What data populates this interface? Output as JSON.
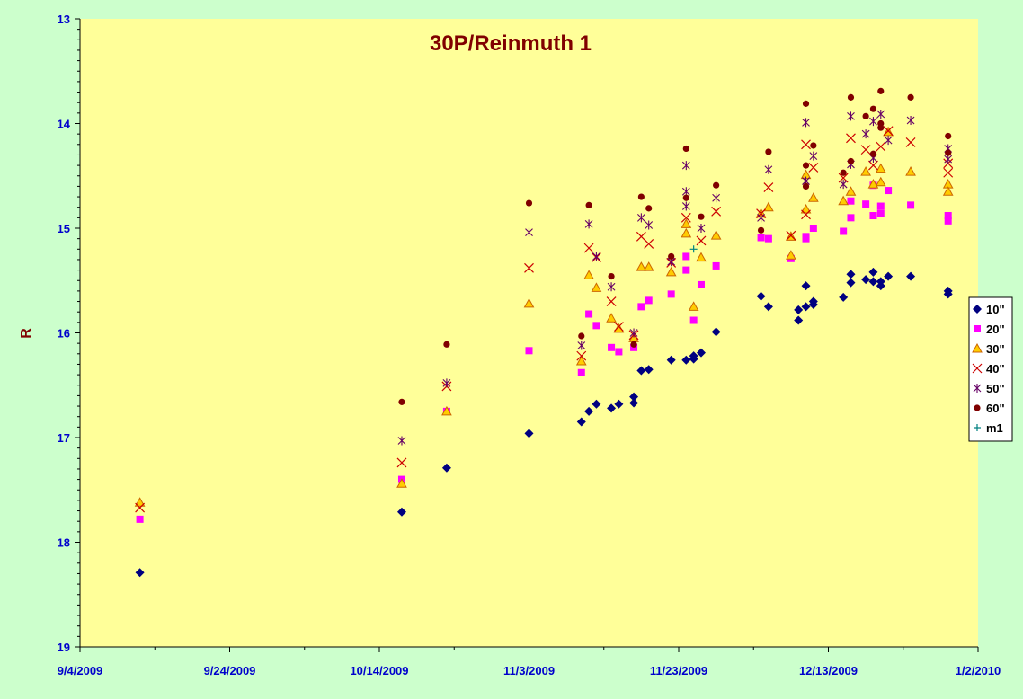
{
  "chart_data": {
    "type": "scatter",
    "title": "30P/Reinmuth 1",
    "ylabel": "R",
    "xlabel": "",
    "y_inverted": true,
    "ylim": [
      13,
      19
    ],
    "xlim": [
      "2009-09-04",
      "2010-01-02"
    ],
    "y_ticks": [
      "13",
      "14",
      "15",
      "16",
      "17",
      "18",
      "19"
    ],
    "x_ticks": [
      "9/4/2009",
      "9/24/2009",
      "10/14/2009",
      "11/3/2009",
      "11/23/2009",
      "12/13/2009",
      "1/2/2010"
    ],
    "grid": false,
    "legend_position": "right",
    "colors": {
      "plot_background": "#ffff99",
      "page_background": "#ccffcc"
    },
    "series": [
      {
        "name": "10\"",
        "marker": "diamond",
        "color": "#000080",
        "points": [
          [
            "2009-09-12",
            18.29
          ],
          [
            "2009-10-17",
            17.71
          ],
          [
            "2009-10-23",
            17.29
          ],
          [
            "2009-11-03",
            16.96
          ],
          [
            "2009-11-10",
            16.85
          ],
          [
            "2009-11-11",
            16.75
          ],
          [
            "2009-11-12",
            16.68
          ],
          [
            "2009-11-14",
            16.72
          ],
          [
            "2009-11-15",
            16.68
          ],
          [
            "2009-11-17",
            16.67
          ],
          [
            "2009-11-17",
            16.61
          ],
          [
            "2009-11-18",
            16.36
          ],
          [
            "2009-11-19",
            16.35
          ],
          [
            "2009-11-22",
            16.26
          ],
          [
            "2009-11-24",
            16.26
          ],
          [
            "2009-11-25",
            16.25
          ],
          [
            "2009-11-25",
            16.22
          ],
          [
            "2009-11-26",
            16.19
          ],
          [
            "2009-11-28",
            15.99
          ],
          [
            "2009-12-04",
            15.65
          ],
          [
            "2009-12-05",
            15.75
          ],
          [
            "2009-12-09",
            15.78
          ],
          [
            "2009-12-09",
            15.88
          ],
          [
            "2009-12-10",
            15.55
          ],
          [
            "2009-12-10",
            15.75
          ],
          [
            "2009-12-11",
            15.73
          ],
          [
            "2009-12-11",
            15.7
          ],
          [
            "2009-12-15",
            15.66
          ],
          [
            "2009-12-16",
            15.44
          ],
          [
            "2009-12-16",
            15.52
          ],
          [
            "2009-12-18",
            15.49
          ],
          [
            "2009-12-19",
            15.51
          ],
          [
            "2009-12-19",
            15.42
          ],
          [
            "2009-12-20",
            15.55
          ],
          [
            "2009-12-20",
            15.51
          ],
          [
            "2009-12-21",
            15.46
          ],
          [
            "2009-12-24",
            15.46
          ],
          [
            "2009-12-29",
            15.6
          ],
          [
            "2009-12-29",
            15.63
          ]
        ]
      },
      {
        "name": "20\"",
        "marker": "square",
        "color": "#ff00ff",
        "points": [
          [
            "2009-09-12",
            17.78
          ],
          [
            "2009-10-17",
            17.4
          ],
          [
            "2009-10-23",
            16.75
          ],
          [
            "2009-11-03",
            16.17
          ],
          [
            "2009-11-10",
            16.38
          ],
          [
            "2009-11-11",
            15.82
          ],
          [
            "2009-11-12",
            15.93
          ],
          [
            "2009-11-14",
            16.14
          ],
          [
            "2009-11-15",
            16.18
          ],
          [
            "2009-11-17",
            16.14
          ],
          [
            "2009-11-18",
            15.75
          ],
          [
            "2009-11-19",
            15.69
          ],
          [
            "2009-11-22",
            15.63
          ],
          [
            "2009-11-24",
            15.4
          ],
          [
            "2009-11-24",
            15.27
          ],
          [
            "2009-11-25",
            15.88
          ],
          [
            "2009-11-26",
            15.54
          ],
          [
            "2009-11-28",
            15.36
          ],
          [
            "2009-12-04",
            15.09
          ],
          [
            "2009-12-05",
            15.1
          ],
          [
            "2009-12-08",
            15.29
          ],
          [
            "2009-12-10",
            15.1
          ],
          [
            "2009-12-10",
            15.08
          ],
          [
            "2009-12-11",
            15.0
          ],
          [
            "2009-12-15",
            15.03
          ],
          [
            "2009-12-16",
            14.9
          ],
          [
            "2009-12-16",
            14.74
          ],
          [
            "2009-12-18",
            14.77
          ],
          [
            "2009-12-19",
            14.88
          ],
          [
            "2009-12-19",
            14.59
          ],
          [
            "2009-12-20",
            14.86
          ],
          [
            "2009-12-20",
            14.79
          ],
          [
            "2009-12-21",
            14.64
          ],
          [
            "2009-12-24",
            14.78
          ],
          [
            "2009-12-29",
            14.88
          ],
          [
            "2009-12-29",
            14.93
          ]
        ]
      },
      {
        "name": "30\"",
        "marker": "triangle",
        "color": "#ffcc00",
        "stroke": "#cc6600",
        "points": [
          [
            "2009-09-12",
            17.62
          ],
          [
            "2009-10-17",
            17.44
          ],
          [
            "2009-10-23",
            16.75
          ],
          [
            "2009-11-03",
            15.72
          ],
          [
            "2009-11-10",
            16.27
          ],
          [
            "2009-11-11",
            15.45
          ],
          [
            "2009-11-12",
            15.57
          ],
          [
            "2009-11-14",
            15.86
          ],
          [
            "2009-11-15",
            15.96
          ],
          [
            "2009-11-17",
            16.05
          ],
          [
            "2009-11-18",
            15.37
          ],
          [
            "2009-11-19",
            15.37
          ],
          [
            "2009-11-22",
            15.42
          ],
          [
            "2009-11-24",
            15.05
          ],
          [
            "2009-11-24",
            14.96
          ],
          [
            "2009-11-25",
            15.75
          ],
          [
            "2009-11-26",
            15.28
          ],
          [
            "2009-11-28",
            15.07
          ],
          [
            "2009-12-04",
            14.86
          ],
          [
            "2009-12-05",
            14.8
          ],
          [
            "2009-12-08",
            15.08
          ],
          [
            "2009-12-08",
            15.26
          ],
          [
            "2009-12-10",
            14.82
          ],
          [
            "2009-12-10",
            14.49
          ],
          [
            "2009-12-11",
            14.71
          ],
          [
            "2009-12-15",
            14.74
          ],
          [
            "2009-12-16",
            14.65
          ],
          [
            "2009-12-18",
            14.46
          ],
          [
            "2009-12-19",
            14.58
          ],
          [
            "2009-12-20",
            14.43
          ],
          [
            "2009-12-20",
            14.56
          ],
          [
            "2009-12-21",
            14.08
          ],
          [
            "2009-12-24",
            14.46
          ],
          [
            "2009-12-29",
            14.58
          ],
          [
            "2009-12-29",
            14.65
          ]
        ]
      },
      {
        "name": "40\"",
        "marker": "x",
        "color": "#cc0000",
        "points": [
          [
            "2009-09-12",
            17.67
          ],
          [
            "2009-10-17",
            17.24
          ],
          [
            "2009-10-23",
            16.51
          ],
          [
            "2009-11-03",
            15.38
          ],
          [
            "2009-11-10",
            16.22
          ],
          [
            "2009-11-11",
            15.19
          ],
          [
            "2009-11-12",
            15.28
          ],
          [
            "2009-11-14",
            15.7
          ],
          [
            "2009-11-15",
            15.94
          ],
          [
            "2009-11-17",
            16.02
          ],
          [
            "2009-11-18",
            15.08
          ],
          [
            "2009-11-19",
            15.15
          ],
          [
            "2009-11-22",
            15.33
          ],
          [
            "2009-11-24",
            14.9
          ],
          [
            "2009-11-26",
            15.12
          ],
          [
            "2009-11-28",
            14.84
          ],
          [
            "2009-12-04",
            14.86
          ],
          [
            "2009-12-05",
            14.61
          ],
          [
            "2009-12-08",
            15.07
          ],
          [
            "2009-12-10",
            14.2
          ],
          [
            "2009-12-10",
            14.87
          ],
          [
            "2009-12-11",
            14.42
          ],
          [
            "2009-12-15",
            14.52
          ],
          [
            "2009-12-16",
            14.14
          ],
          [
            "2009-12-18",
            14.25
          ],
          [
            "2009-12-19",
            14.4
          ],
          [
            "2009-12-20",
            14.22
          ],
          [
            "2009-12-21",
            14.07
          ],
          [
            "2009-12-24",
            14.18
          ],
          [
            "2009-12-29",
            14.38
          ],
          [
            "2009-12-29",
            14.47
          ]
        ]
      },
      {
        "name": "50\"",
        "marker": "star",
        "color": "#660066",
        "points": [
          [
            "2009-10-17",
            17.03
          ],
          [
            "2009-10-23",
            16.48
          ],
          [
            "2009-11-03",
            15.04
          ],
          [
            "2009-11-10",
            16.12
          ],
          [
            "2009-11-11",
            14.96
          ],
          [
            "2009-11-12",
            15.27
          ],
          [
            "2009-11-14",
            15.56
          ],
          [
            "2009-11-17",
            16.0
          ],
          [
            "2009-11-18",
            14.9
          ],
          [
            "2009-11-19",
            14.97
          ],
          [
            "2009-11-22",
            15.32
          ],
          [
            "2009-11-24",
            14.65
          ],
          [
            "2009-11-24",
            14.4
          ],
          [
            "2009-11-24",
            14.79
          ],
          [
            "2009-11-26",
            15.0
          ],
          [
            "2009-11-28",
            14.71
          ],
          [
            "2009-12-04",
            14.9
          ],
          [
            "2009-12-05",
            14.44
          ],
          [
            "2009-12-10",
            13.99
          ],
          [
            "2009-12-10",
            14.55
          ],
          [
            "2009-12-11",
            14.31
          ],
          [
            "2009-12-15",
            14.58
          ],
          [
            "2009-12-16",
            13.93
          ],
          [
            "2009-12-16",
            14.39
          ],
          [
            "2009-12-18",
            14.1
          ],
          [
            "2009-12-19",
            13.98
          ],
          [
            "2009-12-19",
            14.33
          ],
          [
            "2009-12-20",
            13.91
          ],
          [
            "2009-12-21",
            14.16
          ],
          [
            "2009-12-24",
            13.97
          ],
          [
            "2009-12-29",
            14.24
          ],
          [
            "2009-12-29",
            14.34
          ]
        ]
      },
      {
        "name": "60\"",
        "marker": "circle",
        "color": "#800000",
        "points": [
          [
            "2009-10-17",
            16.66
          ],
          [
            "2009-10-23",
            16.11
          ],
          [
            "2009-11-03",
            14.76
          ],
          [
            "2009-11-10",
            16.03
          ],
          [
            "2009-11-11",
            14.78
          ],
          [
            "2009-11-14",
            15.46
          ],
          [
            "2009-11-17",
            16.11
          ],
          [
            "2009-11-18",
            14.7
          ],
          [
            "2009-11-19",
            14.81
          ],
          [
            "2009-11-22",
            15.27
          ],
          [
            "2009-11-24",
            14.24
          ],
          [
            "2009-11-24",
            14.71
          ],
          [
            "2009-11-26",
            14.89
          ],
          [
            "2009-11-28",
            14.59
          ],
          [
            "2009-12-04",
            15.02
          ],
          [
            "2009-12-05",
            14.27
          ],
          [
            "2009-12-10",
            13.81
          ],
          [
            "2009-12-10",
            14.4
          ],
          [
            "2009-12-10",
            14.6
          ],
          [
            "2009-12-11",
            14.21
          ],
          [
            "2009-12-15",
            14.47
          ],
          [
            "2009-12-16",
            13.75
          ],
          [
            "2009-12-16",
            14.36
          ],
          [
            "2009-12-18",
            13.93
          ],
          [
            "2009-12-19",
            13.86
          ],
          [
            "2009-12-19",
            14.29
          ],
          [
            "2009-12-20",
            13.69
          ],
          [
            "2009-12-20",
            14.0
          ],
          [
            "2009-12-20",
            14.04
          ],
          [
            "2009-12-24",
            13.75
          ],
          [
            "2009-12-29",
            14.12
          ],
          [
            "2009-12-29",
            14.28
          ]
        ]
      },
      {
        "name": "m1",
        "marker": "plus",
        "color": "#008080",
        "points": [
          [
            "2009-11-25",
            15.2
          ]
        ]
      }
    ]
  }
}
